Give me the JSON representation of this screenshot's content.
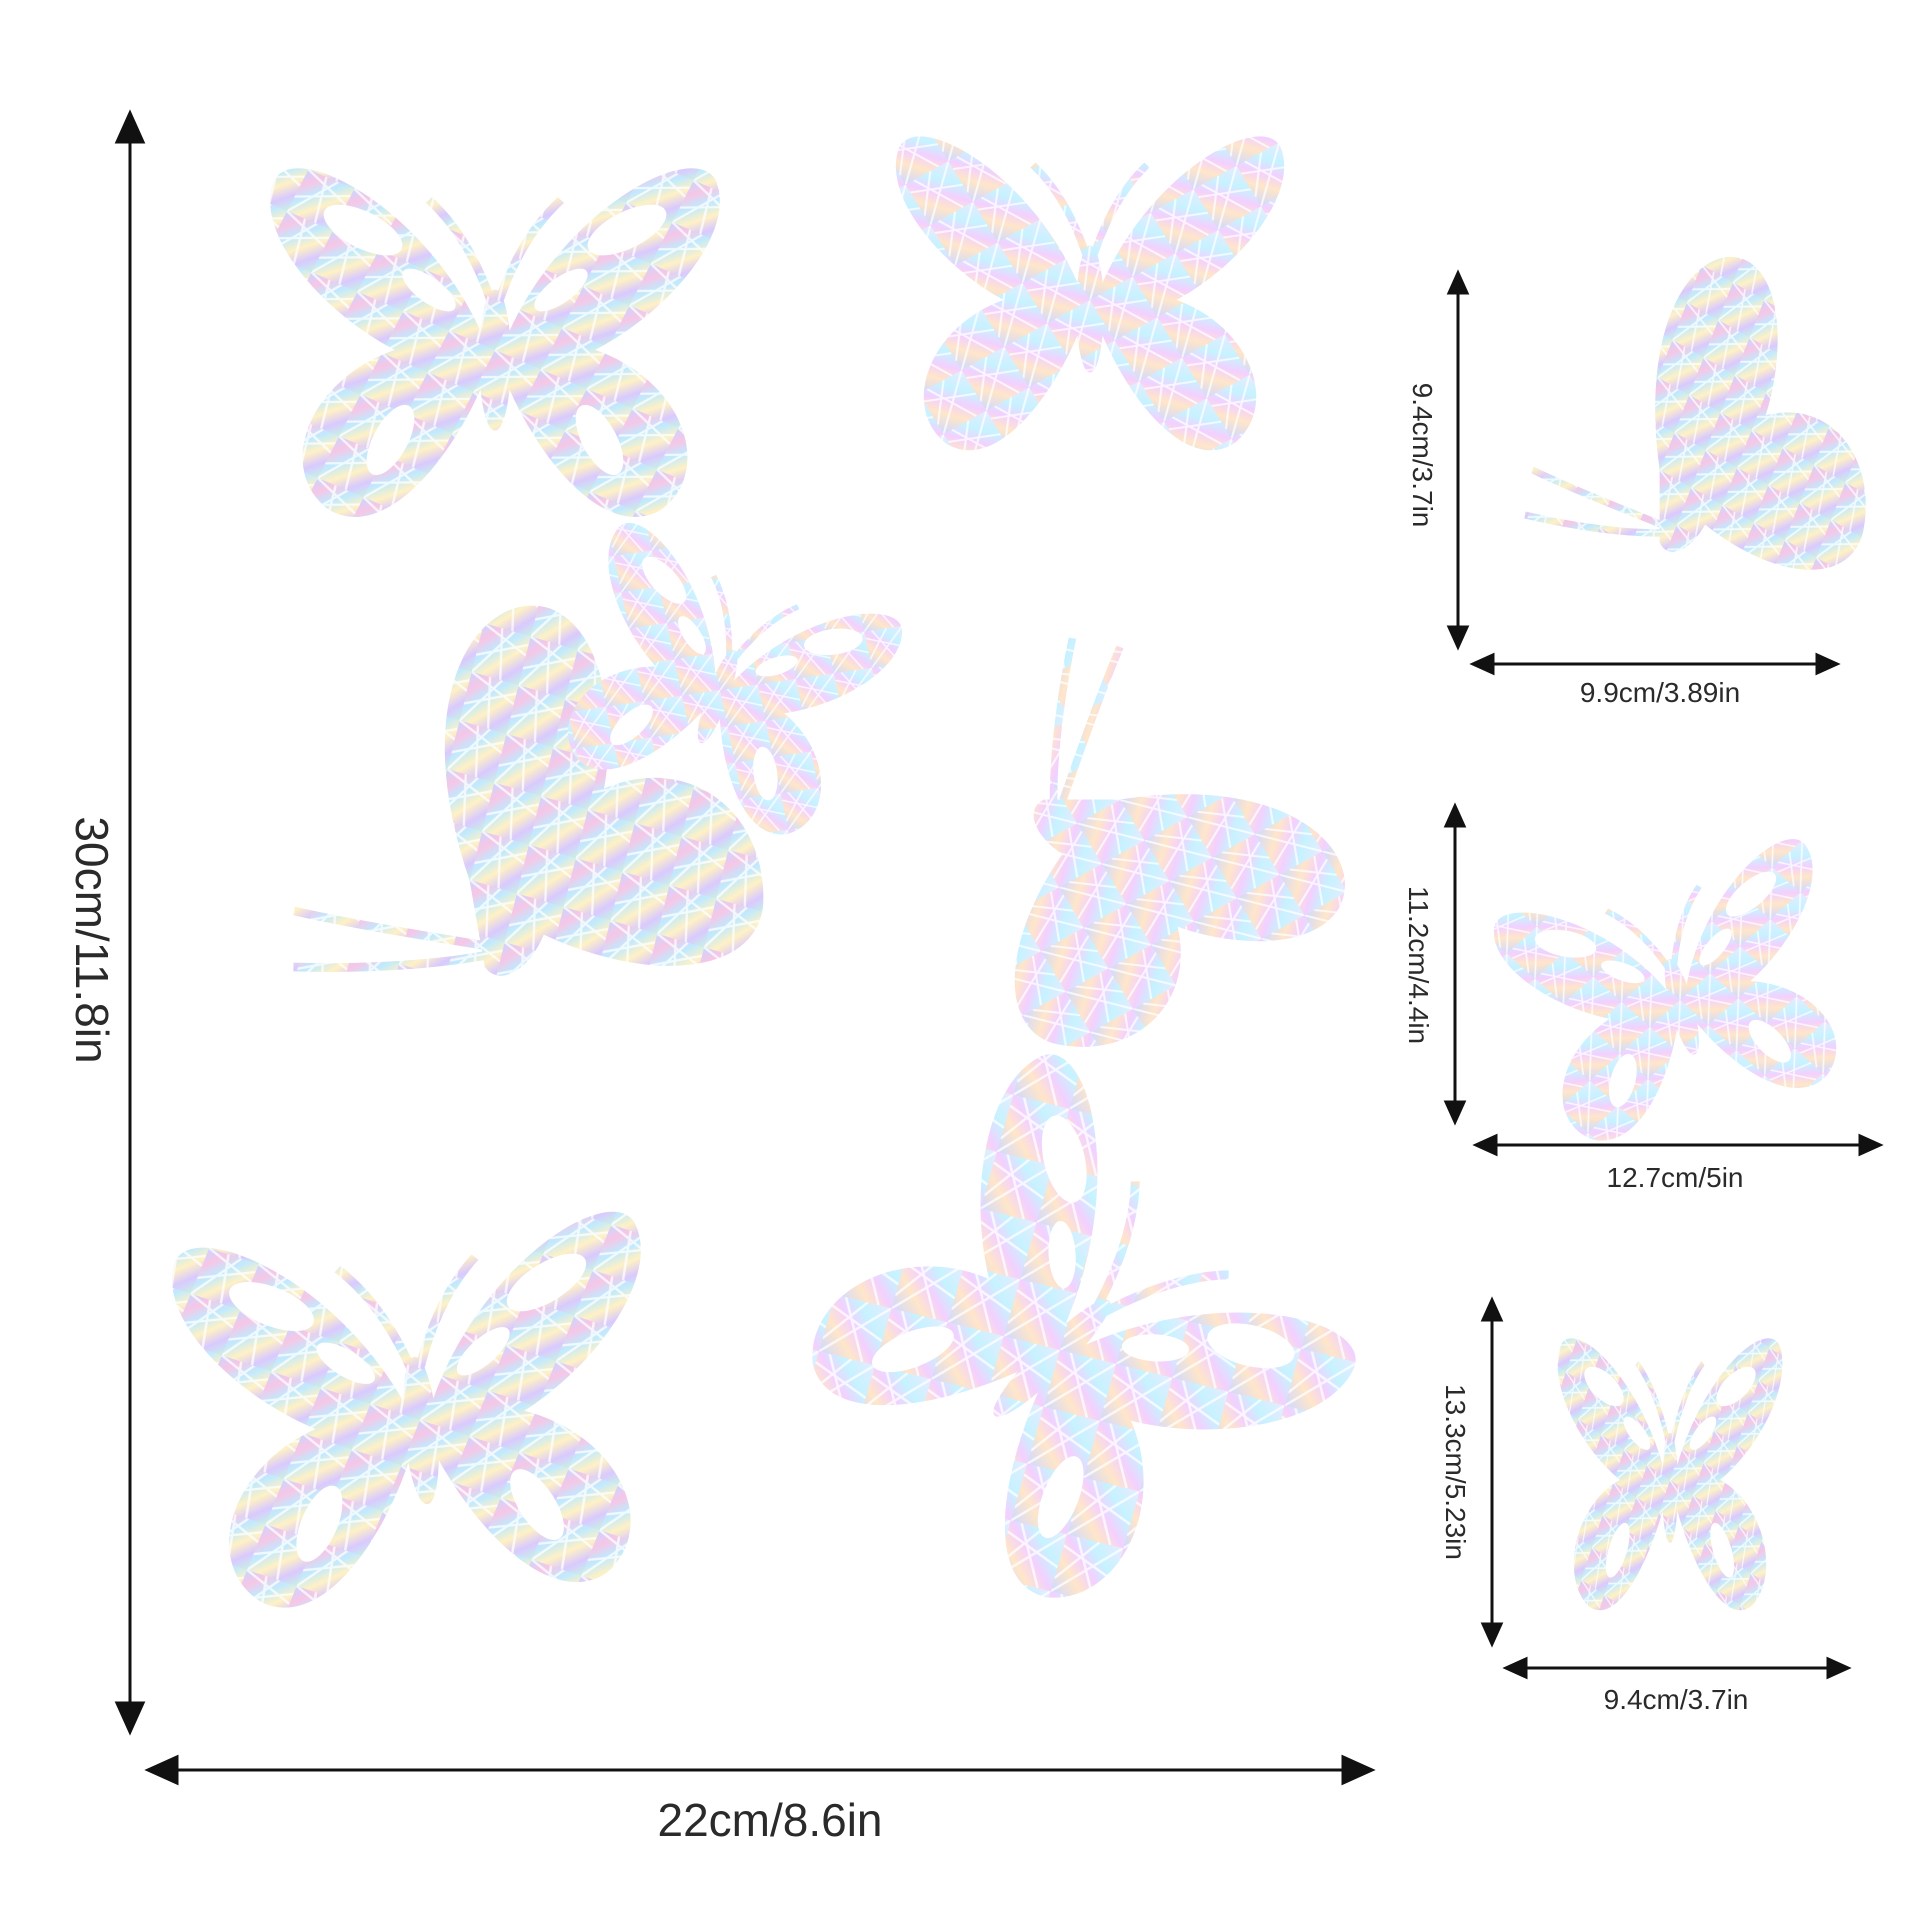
{
  "sheet": {
    "height_label": "30cm/11.8in",
    "width_label": "22cm/8.6in"
  },
  "samples": [
    {
      "height_label": "9.4cm/3.7in",
      "width_label": "9.9cm/3.89in"
    },
    {
      "height_label": "11.2cm/4.4in",
      "width_label": "12.7cm/5in"
    },
    {
      "height_label": "13.3cm/5.23in",
      "width_label": "9.4cm/3.7in"
    }
  ],
  "colors": {
    "arrow": "#111111",
    "text": "#2a2a2a",
    "background": "#ffffff",
    "iridescent": [
      "#c9d6ff",
      "#f7c6e6",
      "#bfeaff",
      "#fff1c4",
      "#d9c9ff",
      "#c6f2e6"
    ]
  }
}
